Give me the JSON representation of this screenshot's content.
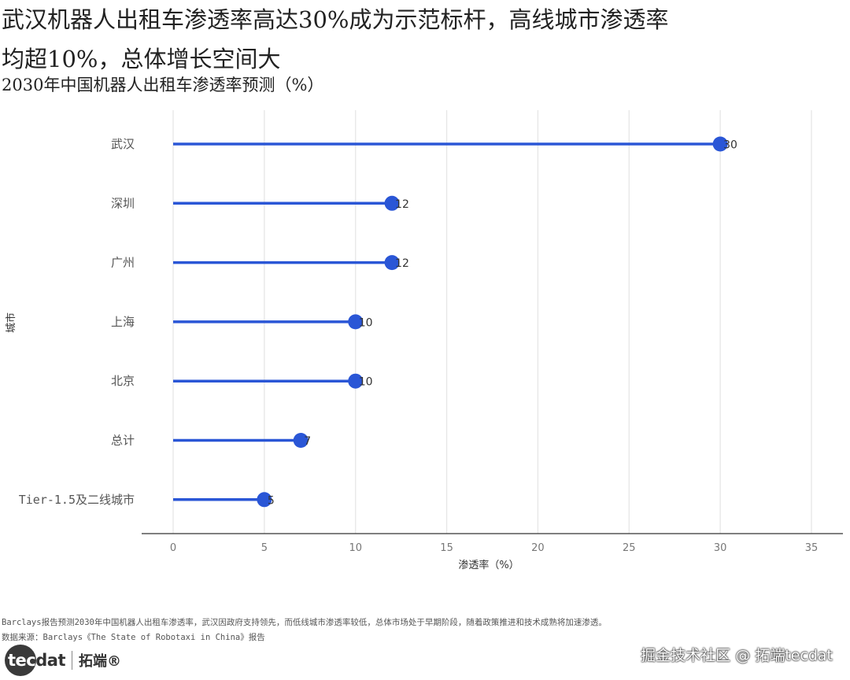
{
  "title_lines": [
    "武汉机器人出租车渗透率高达30%成为示范标杆，高线城市渗透率",
    "均超10%，总体增长空间大"
  ],
  "subtitle": "2030年中国机器人出租车渗透率预测（%）",
  "note": "Barclays报告预测2030年中国机器人出租车渗透率，武汉因政府支持领先，而低线城市渗透率较低，总体市场处于早期阶段，随着政策推进和技术成熟将加速渗透。",
  "source": "数据来源：Barclays《The State of Robotaxi in China》报告",
  "logo": {
    "text_first": "tec",
    "text_rest": "dat",
    "cn": "拓端®"
  },
  "watermark": "掘金技术社区 @ 拓端tecdat",
  "colors": {
    "accent": "#2a56d6",
    "grid": "#e6e6e6",
    "axis": "#333333"
  },
  "chart_data": {
    "type": "lollipop",
    "orientation": "horizontal",
    "categories": [
      "武汉",
      "深圳",
      "广州",
      "上海",
      "北京",
      "总计",
      "Tier-1.5及二线城市"
    ],
    "values": [
      30,
      12,
      12,
      10,
      10,
      7,
      5
    ],
    "value_labels": [
      "30",
      "12",
      "12",
      "10",
      "10",
      "7",
      "5"
    ],
    "xlabel": "渗透率（%）",
    "ylabel": "城市",
    "xlim": [
      0,
      35
    ],
    "xticks": [
      0,
      5,
      10,
      15,
      20,
      25,
      30,
      35
    ],
    "grid": "vertical"
  }
}
